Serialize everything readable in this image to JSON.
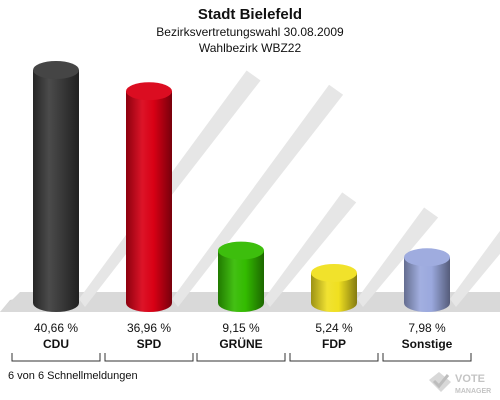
{
  "chart_data": {
    "type": "bar",
    "title": "Stadt Bielefeld",
    "subtitle_lines": [
      "Bezirksvertretungswahl 30.08.2009",
      "Wahlbezirk WBZ22"
    ],
    "categories": [
      "CDU",
      "SPD",
      "GRÜNE",
      "FDP",
      "Sonstige"
    ],
    "values": [
      40.66,
      36.96,
      9.15,
      5.24,
      7.98
    ],
    "value_labels": [
      "40,66 %",
      "36,96 %",
      "9,15 %",
      "5,24 %",
      "7,98 %"
    ],
    "colors": [
      "#3b3b3b",
      "#d90015",
      "#33bb00",
      "#f0e020",
      "#9aa8dd"
    ],
    "ylim": [
      0,
      45
    ],
    "grid": false
  },
  "footer": {
    "note": "6 von 6 Schnellmeldungen",
    "logo_text_top": "VOTE",
    "logo_text_bottom": "MANAGER"
  }
}
